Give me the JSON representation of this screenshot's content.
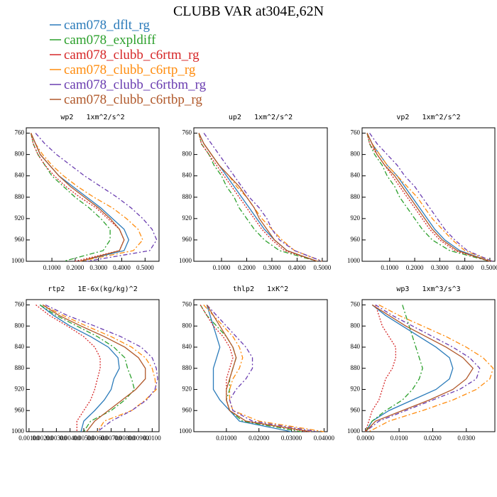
{
  "title": "CLUBB VAR at304E,62N",
  "legend": {
    "series": [
      {
        "name": "cam078_dflt_rg",
        "color": "#2b7bba",
        "dash": "none"
      },
      {
        "name": "cam078_expldiff",
        "color": "#2ca02c",
        "dash": "7 3 2 3"
      },
      {
        "name": "cam078_clubb_c6rtm_rg",
        "color": "#d62728",
        "dash": "2 2"
      },
      {
        "name": "cam078_clubb_c6rtp_rg",
        "color": "#ff8c0e",
        "dash": "7 3 2 3"
      },
      {
        "name": "cam078_clubb_c6rtbm_rg",
        "color": "#6a3db0",
        "dash": "6 3 2 3"
      },
      {
        "name": "cam078_clubb_c6rtbp_rg",
        "color": "#b0582a",
        "dash": "none"
      }
    ]
  },
  "chart_data": [
    {
      "type": "line",
      "title": "wp2   1xm^2/s^2",
      "y": [
        760,
        780,
        800,
        820,
        840,
        860,
        880,
        900,
        920,
        940,
        960,
        980,
        1000
      ],
      "ylim": [
        1000,
        750
      ],
      "yticks": [
        760,
        800,
        840,
        880,
        920,
        960,
        1000
      ],
      "xlim": [
        -0.01,
        0.56
      ],
      "xticks": [
        {
          "value": 0.1,
          "label": "0.1000"
        },
        {
          "value": 0.2,
          "label": "0.2000"
        },
        {
          "value": 0.3,
          "label": "0.3000"
        },
        {
          "value": 0.4,
          "label": "0.4000"
        },
        {
          "value": 0.5,
          "label": "0.5000"
        }
      ],
      "series": [
        {
          "values": [
            0.01,
            0.03,
            0.05,
            0.09,
            0.13,
            0.19,
            0.25,
            0.31,
            0.36,
            0.41,
            0.43,
            0.41,
            0.22
          ]
        },
        {
          "values": [
            0.01,
            0.02,
            0.04,
            0.07,
            0.1,
            0.15,
            0.2,
            0.26,
            0.31,
            0.35,
            0.35,
            0.32,
            0.15
          ]
        },
        {
          "values": [
            0.01,
            0.02,
            0.04,
            0.07,
            0.11,
            0.16,
            0.22,
            0.29,
            0.34,
            0.39,
            0.41,
            0.39,
            0.2
          ]
        },
        {
          "values": [
            0.01,
            0.03,
            0.06,
            0.1,
            0.15,
            0.21,
            0.28,
            0.36,
            0.42,
            0.47,
            0.49,
            0.45,
            0.22
          ]
        },
        {
          "values": [
            0.03,
            0.07,
            0.12,
            0.18,
            0.24,
            0.31,
            0.38,
            0.44,
            0.49,
            0.53,
            0.55,
            0.52,
            0.25
          ]
        },
        {
          "values": [
            0.01,
            0.03,
            0.05,
            0.09,
            0.13,
            0.18,
            0.24,
            0.3,
            0.35,
            0.39,
            0.41,
            0.39,
            0.22
          ]
        }
      ]
    },
    {
      "type": "line",
      "title": "up2   1xm^2/s^2",
      "y": [
        760,
        780,
        800,
        820,
        840,
        860,
        880,
        900,
        920,
        940,
        960,
        980,
        1000
      ],
      "ylim": [
        1000,
        750
      ],
      "yticks": [
        760,
        800,
        840,
        880,
        920,
        960,
        1000
      ],
      "xlim": [
        -0.01,
        0.52
      ],
      "xticks": [
        {
          "value": 0.1,
          "label": "0.1000"
        },
        {
          "value": 0.2,
          "label": "0.2000"
        },
        {
          "value": 0.3,
          "label": "0.3000"
        },
        {
          "value": 0.4,
          "label": "0.4000"
        },
        {
          "value": 0.5,
          "label": "0.5000"
        }
      ],
      "series": [
        {
          "values": [
            0.01,
            0.03,
            0.06,
            0.09,
            0.12,
            0.15,
            0.18,
            0.21,
            0.24,
            0.27,
            0.31,
            0.36,
            0.48
          ]
        },
        {
          "values": [
            0.01,
            0.02,
            0.05,
            0.07,
            0.1,
            0.12,
            0.15,
            0.17,
            0.2,
            0.23,
            0.27,
            0.33,
            0.48
          ]
        },
        {
          "values": [
            0.01,
            0.02,
            0.05,
            0.08,
            0.11,
            0.14,
            0.17,
            0.2,
            0.23,
            0.26,
            0.3,
            0.35,
            0.48
          ]
        },
        {
          "values": [
            0.01,
            0.03,
            0.06,
            0.09,
            0.13,
            0.16,
            0.2,
            0.23,
            0.26,
            0.3,
            0.34,
            0.39,
            0.5
          ]
        },
        {
          "values": [
            0.03,
            0.06,
            0.09,
            0.12,
            0.15,
            0.18,
            0.21,
            0.25,
            0.28,
            0.3,
            0.33,
            0.39,
            0.5
          ]
        },
        {
          "values": [
            0.01,
            0.03,
            0.06,
            0.09,
            0.13,
            0.17,
            0.2,
            0.23,
            0.25,
            0.28,
            0.31,
            0.36,
            0.48
          ]
        }
      ]
    },
    {
      "type": "line",
      "title": "vp2   1xm^2/s^2",
      "y": [
        760,
        780,
        800,
        820,
        840,
        860,
        880,
        900,
        920,
        940,
        960,
        980,
        1000
      ],
      "ylim": [
        1000,
        750
      ],
      "yticks": [
        760,
        800,
        840,
        880,
        920,
        960,
        1000
      ],
      "xlim": [
        -0.01,
        0.52
      ],
      "xticks": [
        {
          "value": 0.1,
          "label": "0.1000"
        },
        {
          "value": 0.2,
          "label": "0.2000"
        },
        {
          "value": 0.3,
          "label": "0.3000"
        },
        {
          "value": 0.4,
          "label": "0.4000"
        },
        {
          "value": 0.5,
          "label": "0.5000"
        }
      ],
      "series": [
        {
          "values": [
            0.01,
            0.03,
            0.06,
            0.09,
            0.13,
            0.16,
            0.19,
            0.22,
            0.25,
            0.28,
            0.32,
            0.38,
            0.5
          ]
        },
        {
          "values": [
            0.01,
            0.02,
            0.04,
            0.07,
            0.09,
            0.12,
            0.14,
            0.17,
            0.2,
            0.23,
            0.27,
            0.34,
            0.5
          ]
        },
        {
          "values": [
            0.01,
            0.02,
            0.05,
            0.08,
            0.11,
            0.14,
            0.17,
            0.2,
            0.23,
            0.26,
            0.3,
            0.36,
            0.5
          ]
        },
        {
          "values": [
            0.01,
            0.03,
            0.06,
            0.09,
            0.13,
            0.17,
            0.21,
            0.24,
            0.27,
            0.31,
            0.35,
            0.4,
            0.51
          ]
        },
        {
          "values": [
            0.02,
            0.05,
            0.09,
            0.13,
            0.16,
            0.2,
            0.23,
            0.26,
            0.29,
            0.32,
            0.36,
            0.41,
            0.51
          ]
        },
        {
          "values": [
            0.01,
            0.03,
            0.05,
            0.08,
            0.12,
            0.15,
            0.18,
            0.21,
            0.24,
            0.27,
            0.31,
            0.37,
            0.5
          ]
        }
      ]
    },
    {
      "type": "line",
      "title": "rtp2   1E-6x(kg/kg)^2",
      "y": [
        760,
        780,
        800,
        820,
        840,
        860,
        880,
        900,
        920,
        940,
        960,
        980,
        1000
      ],
      "ylim": [
        1000,
        750
      ],
      "yticks": [
        760,
        800,
        840,
        880,
        920,
        960,
        1000
      ],
      "xlim": [
        0.0008,
        0.0105
      ],
      "xticks": [
        {
          "value": 0.001,
          "label": "0.00100"
        },
        {
          "value": 0.002,
          "label": "0.00200"
        },
        {
          "value": 0.003,
          "label": "0.00300"
        },
        {
          "value": 0.004,
          "label": "0.00400"
        },
        {
          "value": 0.005,
          "label": "0.00500"
        },
        {
          "value": 0.006,
          "label": "0.00600"
        },
        {
          "value": 0.007,
          "label": "0.00700"
        },
        {
          "value": 0.008,
          "label": "0.00800"
        },
        {
          "value": 0.009,
          "label": "0.00900"
        },
        {
          "value": 0.01,
          "label": "0.0100"
        }
      ],
      "series": [
        {
          "values": [
            0.0018,
            0.0028,
            0.004,
            0.0055,
            0.0068,
            0.0075,
            0.0076,
            0.0072,
            0.007,
            0.0065,
            0.0058,
            0.005,
            0.0048
          ]
        },
        {
          "values": [
            0.0018,
            0.003,
            0.0045,
            0.006,
            0.0072,
            0.008,
            0.0082,
            0.0085,
            0.0087,
            0.008,
            0.007,
            0.0055,
            0.005
          ]
        },
        {
          "values": [
            0.0015,
            0.0025,
            0.0038,
            0.005,
            0.0058,
            0.0062,
            0.0062,
            0.006,
            0.0058,
            0.0055,
            0.005,
            0.0045,
            0.0045
          ]
        },
        {
          "values": [
            0.002,
            0.0035,
            0.0052,
            0.007,
            0.0085,
            0.0095,
            0.01,
            0.0102,
            0.0103,
            0.0095,
            0.0085,
            0.0065,
            0.006
          ]
        },
        {
          "values": [
            0.0022,
            0.0038,
            0.0058,
            0.0077,
            0.0092,
            0.01,
            0.0103,
            0.0104,
            0.0102,
            0.0096,
            0.0085,
            0.007,
            0.006
          ]
        },
        {
          "values": [
            0.002,
            0.0032,
            0.0048,
            0.0065,
            0.008,
            0.009,
            0.0095,
            0.0095,
            0.0088,
            0.0078,
            0.0068,
            0.0058,
            0.0052
          ]
        }
      ]
    },
    {
      "type": "line",
      "title": "thlp2   1xK^2",
      "y": [
        760,
        780,
        800,
        820,
        840,
        860,
        880,
        900,
        920,
        940,
        960,
        980,
        1000
      ],
      "ylim": [
        1000,
        750
      ],
      "yticks": [
        760,
        800,
        840,
        880,
        920,
        960,
        1000
      ],
      "xlim": [
        0,
        0.041
      ],
      "xticks": [
        {
          "value": 0.01,
          "label": "0.01000"
        },
        {
          "value": 0.02,
          "label": "0.02000"
        },
        {
          "value": 0.03,
          "label": "0.03000"
        },
        {
          "value": 0.04,
          "label": "0.04000"
        }
      ],
      "series": [
        {
          "values": [
            0.004,
            0.005,
            0.006,
            0.007,
            0.008,
            0.007,
            0.006,
            0.006,
            0.006,
            0.008,
            0.011,
            0.014,
            0.03
          ]
        },
        {
          "values": [
            0.002,
            0.004,
            0.007,
            0.01,
            0.012,
            0.013,
            0.012,
            0.011,
            0.011,
            0.01,
            0.011,
            0.015,
            0.033
          ]
        },
        {
          "values": [
            0.002,
            0.004,
            0.006,
            0.009,
            0.011,
            0.012,
            0.011,
            0.01,
            0.01,
            0.01,
            0.011,
            0.016,
            0.035
          ]
        },
        {
          "values": [
            0.003,
            0.006,
            0.009,
            0.012,
            0.014,
            0.015,
            0.014,
            0.012,
            0.011,
            0.011,
            0.012,
            0.02,
            0.04
          ]
        },
        {
          "values": [
            0.004,
            0.007,
            0.01,
            0.013,
            0.016,
            0.018,
            0.018,
            0.016,
            0.013,
            0.011,
            0.012,
            0.018,
            0.038
          ]
        },
        {
          "values": [
            0.004,
            0.006,
            0.008,
            0.01,
            0.012,
            0.013,
            0.012,
            0.011,
            0.01,
            0.01,
            0.011,
            0.016,
            0.036
          ]
        }
      ]
    },
    {
      "type": "line",
      "title": "wp3   1xm^3/s^3",
      "y": [
        760,
        780,
        800,
        820,
        840,
        860,
        880,
        900,
        920,
        940,
        960,
        980,
        1000
      ],
      "ylim": [
        1000,
        750
      ],
      "yticks": [
        760,
        800,
        840,
        880,
        920,
        960,
        1000
      ],
      "xlim": [
        -0.001,
        0.0385
      ],
      "xticks": [
        {
          "value": 0,
          "label": "0.0000"
        },
        {
          "value": 0.01,
          "label": "0.0100"
        },
        {
          "value": 0.02,
          "label": "0.0200"
        },
        {
          "value": 0.03,
          "label": "0.0300"
        }
      ],
      "series": [
        {
          "values": [
            0.002,
            0.006,
            0.011,
            0.016,
            0.021,
            0.025,
            0.026,
            0.025,
            0.021,
            0.014,
            0.007,
            0.002,
            0.0
          ]
        },
        {
          "values": [
            0.011,
            0.012,
            0.013,
            0.014,
            0.015,
            0.016,
            0.017,
            0.016,
            0.014,
            0.011,
            0.006,
            0.002,
            0.0
          ]
        },
        {
          "values": [
            0.003,
            0.004,
            0.005,
            0.007,
            0.009,
            0.009,
            0.008,
            0.006,
            0.005,
            0.004,
            0.002,
            0.001,
            0.0
          ]
        },
        {
          "values": [
            0.004,
            0.01,
            0.017,
            0.024,
            0.03,
            0.035,
            0.038,
            0.037,
            0.033,
            0.026,
            0.017,
            0.007,
            0.001
          ]
        },
        {
          "values": [
            0.003,
            0.008,
            0.014,
            0.02,
            0.026,
            0.031,
            0.034,
            0.033,
            0.028,
            0.02,
            0.012,
            0.004,
            0.0
          ]
        },
        {
          "values": [
            0.002,
            0.007,
            0.012,
            0.018,
            0.024,
            0.029,
            0.032,
            0.03,
            0.026,
            0.019,
            0.011,
            0.003,
            0.0
          ]
        }
      ]
    }
  ]
}
